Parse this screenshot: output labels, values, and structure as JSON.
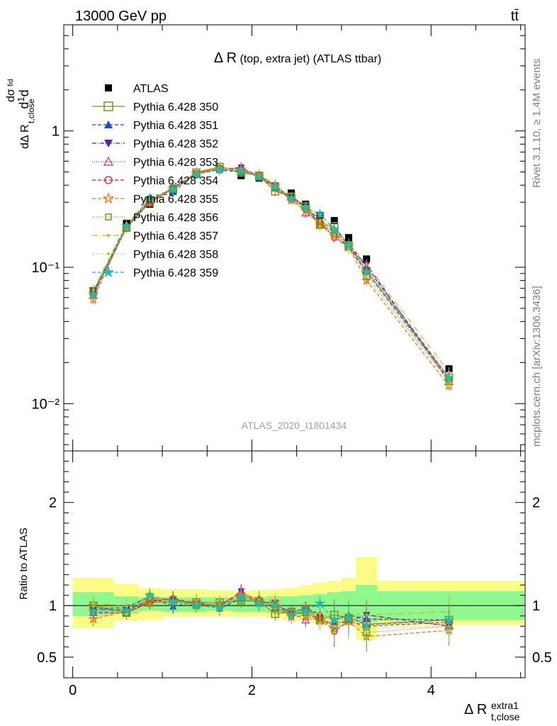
{
  "header": {
    "energy_label": "13000 GeV pp",
    "process_label": "tt̄"
  },
  "side_labels": {
    "rivet": "Rivet 3.1.10, ≥ 1.4M events",
    "mcplots": "mcplots.cern.ch [arXiv:1306.3436]"
  },
  "analysis_id": "ATLAS_2020_I1801434",
  "colors": {
    "band_stat": "#8ef78e",
    "band_total": "#fbfb88"
  },
  "chart_data": [
    {
      "type": "scatter",
      "title": "Δ R (top, extra jet) (ATLAS ttbar)",
      "title_main": "Δ R",
      "title_paren": " (top, extra jet) (ATLAS ttbar)",
      "ylabel": "dσ/dΔ R_t,close^extra1 / σ",
      "xlabel": "Δ R_t,close^extra1",
      "xlim": [
        -0.1,
        5.05
      ],
      "ylim": [
        0.0045,
        6
      ],
      "log_y": true,
      "y_tick_labels": [
        "1",
        "10⁻¹",
        "10⁻²"
      ],
      "x": [
        0.23,
        0.6,
        0.86,
        1.12,
        1.38,
        1.64,
        1.88,
        2.08,
        2.26,
        2.44,
        2.6,
        2.76,
        2.92,
        3.08,
        3.28,
        4.2
      ],
      "data": {
        "name": "ATLAS",
        "values": [
          0.067,
          0.21,
          0.29,
          0.36,
          0.48,
          0.53,
          0.47,
          0.45,
          0.39,
          0.35,
          0.29,
          0.24,
          0.22,
          0.165,
          0.115,
          0.018
        ]
      },
      "series": [
        {
          "name": "Pythia 6.428 350",
          "color": "#8a8a20",
          "marker": "square-open",
          "dash": "",
          "values": [
            0.067,
            0.195,
            0.3,
            0.375,
            0.495,
            0.545,
            0.495,
            0.47,
            0.36,
            0.33,
            0.28,
            0.205,
            0.2,
            0.145,
            0.094,
            0.0155
          ]
        },
        {
          "name": "Pythia 6.428 351",
          "color": "#1f4fbf",
          "marker": "triangle-up",
          "dash": "5,3",
          "values": [
            0.065,
            0.205,
            0.315,
            0.355,
            0.5,
            0.515,
            0.5,
            0.475,
            0.39,
            0.33,
            0.28,
            0.22,
            0.19,
            0.15,
            0.1,
            0.0155
          ]
        },
        {
          "name": "Pythia 6.428 352",
          "color": "#5a1fa8",
          "marker": "triangle-down",
          "dash": "6,2,1,2",
          "values": [
            0.064,
            0.2,
            0.305,
            0.38,
            0.49,
            0.52,
            0.54,
            0.46,
            0.4,
            0.32,
            0.27,
            0.205,
            0.18,
            0.14,
            0.105,
            0.0145
          ]
        },
        {
          "name": "Pythia 6.428 353",
          "color": "#c22c8a",
          "marker": "triangle-up-open",
          "dash": "1,2",
          "values": [
            0.062,
            0.195,
            0.31,
            0.38,
            0.485,
            0.54,
            0.525,
            0.48,
            0.38,
            0.325,
            0.25,
            0.21,
            0.185,
            0.14,
            0.1,
            0.0145
          ]
        },
        {
          "name": "Pythia 6.428 354",
          "color": "#e02020",
          "marker": "circle-open",
          "dash": "5,3",
          "values": [
            0.062,
            0.195,
            0.3,
            0.385,
            0.49,
            0.53,
            0.53,
            0.46,
            0.38,
            0.315,
            0.28,
            0.215,
            0.165,
            0.14,
            0.092,
            0.015
          ]
        },
        {
          "name": "Pythia 6.428 355",
          "color": "#ef6f12",
          "marker": "star-open",
          "dash": "5,3",
          "values": [
            0.058,
            0.2,
            0.3,
            0.375,
            0.49,
            0.53,
            0.52,
            0.47,
            0.4,
            0.31,
            0.26,
            0.205,
            0.17,
            0.14,
            0.08,
            0.0135
          ]
        },
        {
          "name": "Pythia 6.428 356",
          "color": "#7b9616",
          "marker": "square-open-small",
          "dash": "1,2",
          "values": [
            0.066,
            0.195,
            0.315,
            0.38,
            0.48,
            0.53,
            0.5,
            0.47,
            0.38,
            0.33,
            0.27,
            0.205,
            0.18,
            0.145,
            0.085,
            0.0145
          ]
        },
        {
          "name": "Pythia 6.428 357",
          "color": "#d6b80f",
          "marker": "dot",
          "dash": "8,3,1,3",
          "values": [
            0.068,
            0.21,
            0.315,
            0.37,
            0.505,
            0.54,
            0.51,
            0.475,
            0.41,
            0.31,
            0.275,
            0.22,
            0.19,
            0.15,
            0.105,
            0.017
          ]
        },
        {
          "name": "Pythia 6.428 358",
          "color": "#b5cc18",
          "marker": "dot",
          "dash": "1,2",
          "values": [
            0.066,
            0.205,
            0.31,
            0.375,
            0.49,
            0.53,
            0.51,
            0.47,
            0.38,
            0.32,
            0.27,
            0.2,
            0.175,
            0.135,
            0.09,
            0.0145
          ]
        },
        {
          "name": "Pythia 6.428 359",
          "color": "#1fbfa5",
          "marker": "star-filled",
          "dash": "5,3",
          "values": [
            0.063,
            0.2,
            0.32,
            0.375,
            0.48,
            0.52,
            0.51,
            0.46,
            0.39,
            0.32,
            0.275,
            0.245,
            0.19,
            0.145,
            0.093,
            0.0155
          ]
        }
      ]
    },
    {
      "type": "scatter",
      "title": "",
      "ylabel": "Ratio to ATLAS",
      "xlabel": "Δ R_t,close^extra1",
      "xlim": [
        -0.1,
        5.05
      ],
      "ylim": [
        0.3,
        2.5
      ],
      "x_tick_labels": [
        "0",
        "2",
        "4"
      ],
      "y_tick_labels": [
        "0.5",
        "1",
        "2"
      ],
      "reference_line": 1,
      "bins": [
        [
          0,
          0.46
        ],
        [
          0.46,
          0.73
        ],
        [
          0.73,
          1.0
        ],
        [
          1.0,
          1.25
        ],
        [
          1.25,
          1.5
        ],
        [
          1.5,
          1.76
        ],
        [
          1.76,
          2.0
        ],
        [
          2.0,
          2.16
        ],
        [
          2.16,
          2.34
        ],
        [
          2.34,
          2.52
        ],
        [
          2.52,
          2.68
        ],
        [
          2.68,
          2.84
        ],
        [
          2.84,
          3.0
        ],
        [
          3.0,
          3.16
        ],
        [
          3.16,
          3.4
        ],
        [
          3.4,
          5.05
        ]
      ],
      "stat_band": [
        [
          0.9,
          1.13
        ],
        [
          0.92,
          1.09
        ],
        [
          0.95,
          1.08
        ],
        [
          0.94,
          1.08
        ],
        [
          0.94,
          1.08
        ],
        [
          0.95,
          1.08
        ],
        [
          0.94,
          1.07
        ],
        [
          0.94,
          1.08
        ],
        [
          0.93,
          1.09
        ],
        [
          0.92,
          1.09
        ],
        [
          0.9,
          1.1
        ],
        [
          0.89,
          1.11
        ],
        [
          0.88,
          1.13
        ],
        [
          0.87,
          1.14
        ],
        [
          0.84,
          1.2
        ],
        [
          0.86,
          1.14
        ]
      ],
      "total_band": [
        [
          0.78,
          1.27
        ],
        [
          0.85,
          1.21
        ],
        [
          0.86,
          1.17
        ],
        [
          0.89,
          1.16
        ],
        [
          0.89,
          1.16
        ],
        [
          0.89,
          1.15
        ],
        [
          0.89,
          1.14
        ],
        [
          0.89,
          1.15
        ],
        [
          0.88,
          1.16
        ],
        [
          0.86,
          1.17
        ],
        [
          0.85,
          1.2
        ],
        [
          0.83,
          1.22
        ],
        [
          0.81,
          1.24
        ],
        [
          0.8,
          1.27
        ],
        [
          0.67,
          1.47
        ],
        [
          0.81,
          1.24
        ]
      ],
      "series": [
        {
          "name": "Pythia 6.428 350",
          "values": [
            1.0,
            0.93,
            1.03,
            1.04,
            1.03,
            1.03,
            1.05,
            1.04,
            0.92,
            0.94,
            0.97,
            0.86,
            0.91,
            0.88,
            0.82,
            0.86
          ]
        },
        {
          "name": "Pythia 6.428 351",
          "values": [
            0.97,
            0.98,
            1.09,
            0.99,
            1.04,
            0.97,
            1.07,
            1.06,
            1.0,
            0.94,
            0.97,
            0.92,
            0.86,
            0.91,
            0.87,
            0.86
          ]
        },
        {
          "name": "Pythia 6.428 352",
          "values": [
            0.96,
            0.96,
            1.05,
            1.06,
            1.02,
            0.99,
            1.14,
            1.03,
            1.03,
            0.92,
            0.93,
            0.86,
            0.82,
            0.85,
            0.91,
            0.8
          ]
        },
        {
          "name": "Pythia 6.428 353",
          "values": [
            0.93,
            0.93,
            1.07,
            1.06,
            1.01,
            1.02,
            1.11,
            1.07,
            0.98,
            0.93,
            0.86,
            0.88,
            0.84,
            0.85,
            0.87,
            0.81
          ]
        },
        {
          "name": "Pythia 6.428 354",
          "values": [
            0.93,
            0.93,
            1.04,
            1.07,
            1.02,
            1.0,
            1.12,
            1.02,
            0.98,
            0.9,
            0.97,
            0.9,
            0.75,
            0.85,
            0.8,
            0.84
          ]
        },
        {
          "name": "Pythia 6.428 355",
          "values": [
            0.87,
            0.95,
            1.04,
            1.04,
            1.02,
            1.0,
            1.1,
            1.04,
            1.03,
            0.89,
            0.9,
            0.85,
            0.77,
            0.85,
            0.7,
            0.76
          ]
        },
        {
          "name": "Pythia 6.428 356",
          "values": [
            0.99,
            0.93,
            1.09,
            1.06,
            1.0,
            1.0,
            1.06,
            1.04,
            0.97,
            0.94,
            0.93,
            0.86,
            0.82,
            0.88,
            0.74,
            0.8
          ]
        },
        {
          "name": "Pythia 6.428 357",
          "values": [
            1.02,
            1.0,
            1.09,
            1.03,
            1.05,
            1.02,
            1.09,
            1.06,
            1.05,
            0.89,
            0.95,
            0.92,
            0.86,
            0.91,
            0.91,
            0.94
          ]
        },
        {
          "name": "Pythia 6.428 358",
          "values": [
            0.99,
            0.98,
            1.07,
            1.04,
            1.02,
            1.0,
            1.09,
            1.04,
            0.97,
            0.91,
            0.93,
            0.83,
            0.8,
            0.82,
            0.78,
            0.8
          ]
        },
        {
          "name": "Pythia 6.428 359",
          "values": [
            0.94,
            0.95,
            1.1,
            1.04,
            1.0,
            0.98,
            1.08,
            1.02,
            1.0,
            0.91,
            0.95,
            1.02,
            0.86,
            0.88,
            0.81,
            0.86
          ]
        }
      ]
    }
  ]
}
